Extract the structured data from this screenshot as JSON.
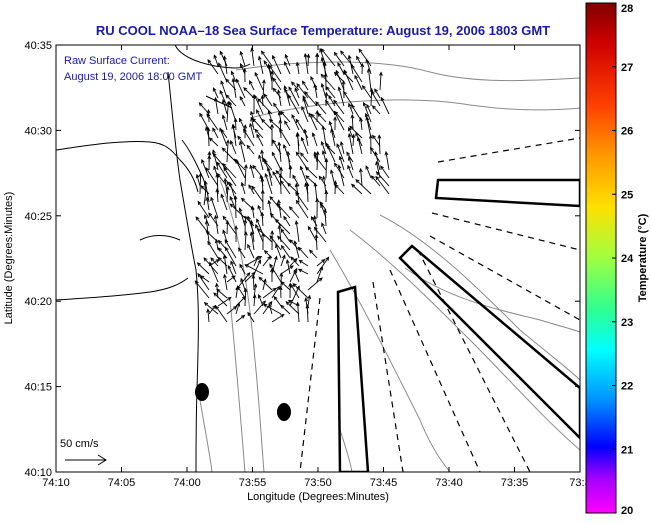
{
  "title": "RU COOL  NOAA–18  Sea Surface Temperature:  August 19, 2006 1803 GMT",
  "annotation": {
    "line1": "Raw Surface Current:",
    "line2": "August 19, 2006 18:00 GMT"
  },
  "scale": {
    "label": "50 cm/s"
  },
  "axes": {
    "xlabel": "Longitude (Degrees:Minutes)",
    "ylabel": "Latitude (Degrees:Minutes)",
    "xticks": [
      "74:10",
      "74:05",
      "74:00",
      "73:55",
      "73:50",
      "73:45",
      "73:40",
      "73:35",
      "73:3"
    ],
    "yticks": [
      "40:35",
      "40:30",
      "40:25",
      "40:20",
      "40:15",
      "40:10"
    ]
  },
  "colorbar": {
    "label": "Temperature (°C)",
    "ticks": [
      "28",
      "27",
      "26",
      "25",
      "24",
      "23",
      "22",
      "21",
      "20"
    ],
    "min": 20,
    "max": 28
  },
  "colors": {
    "text_blue": "#1a1aa6",
    "frame": "#000000",
    "contour": "#8a8a8a",
    "coast": "#000000"
  }
}
